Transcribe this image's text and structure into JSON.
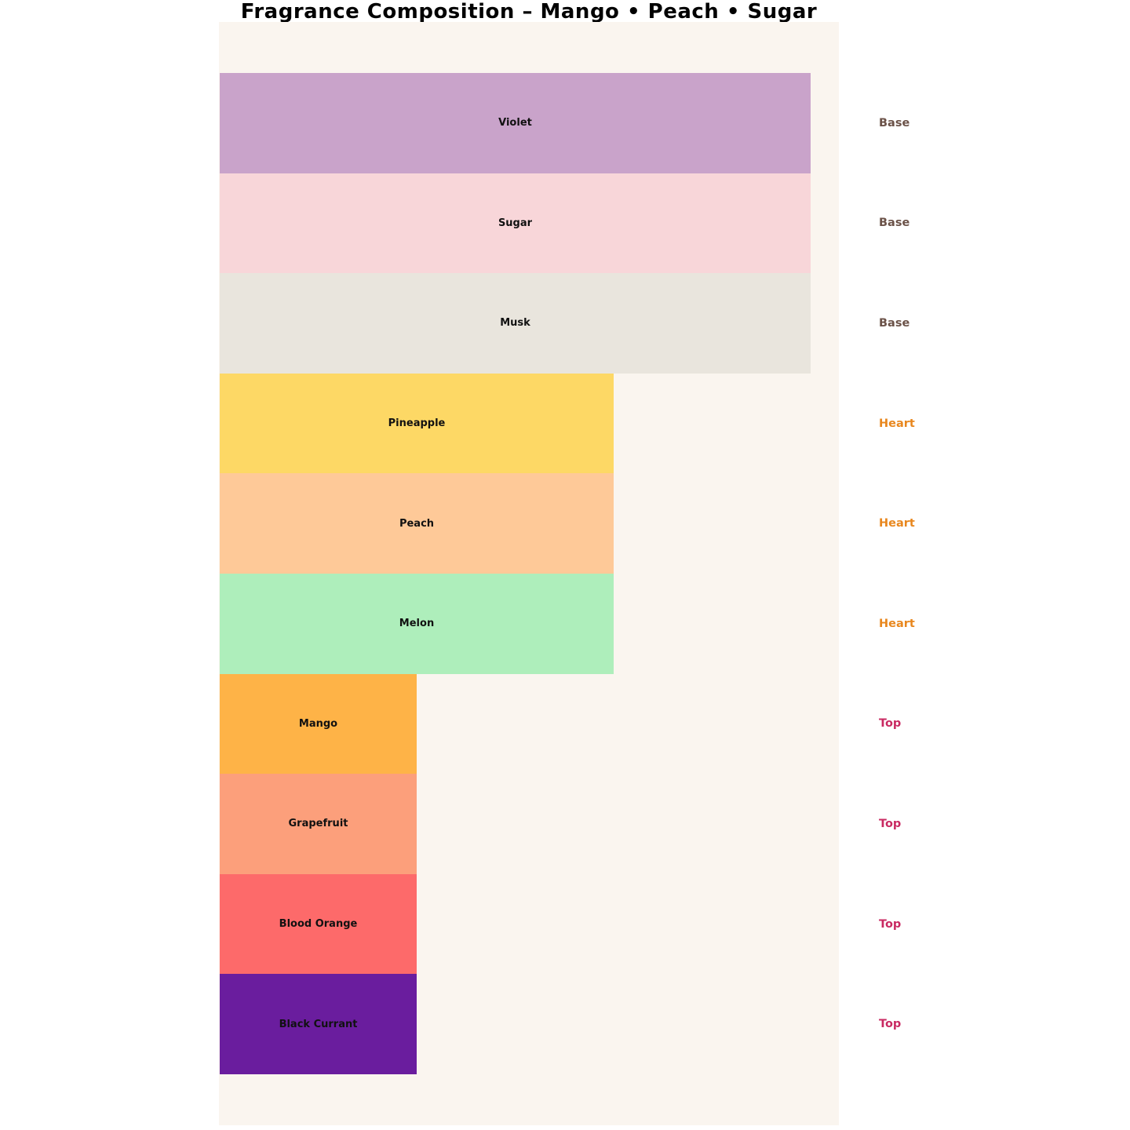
{
  "title": "Fragrance Composition – Mango • Peach • Sugar",
  "chart_data": {
    "type": "bar",
    "orientation": "horizontal",
    "title": "Fragrance Composition – Mango • Peach • Sugar",
    "categories": [
      "Violet",
      "Sugar",
      "Musk",
      "Pineapple",
      "Peach",
      "Melon",
      "Mango",
      "Grapefruit",
      "Blood Orange",
      "Black Currant"
    ],
    "values": [
      3,
      3,
      3,
      2,
      2,
      2,
      1,
      1,
      1,
      1
    ],
    "groups": [
      "Base",
      "Base",
      "Base",
      "Heart",
      "Heart",
      "Heart",
      "Top",
      "Top",
      "Top",
      "Top"
    ],
    "bar_colors": [
      "#c9a3ca",
      "#f8d6d9",
      "#e9e5dd",
      "#fdd865",
      "#fec998",
      "#aeeebb",
      "#feb347",
      "#fc9f7b",
      "#fd6a6a",
      "#6a1d9e"
    ],
    "group_label_colors": {
      "Base": "#6b5248",
      "Heart": "#e8871e",
      "Top": "#c92a62"
    },
    "bar_label_color": "#111111",
    "plot_background": "#faf5ef",
    "page_background": "#ffffff",
    "xlabel": "",
    "ylabel": "",
    "xlim": [
      0,
      3.15
    ],
    "axes_visible": false,
    "grid": false,
    "legend_position": "none",
    "bar_labels_inside": true,
    "group_labels_right": true
  }
}
